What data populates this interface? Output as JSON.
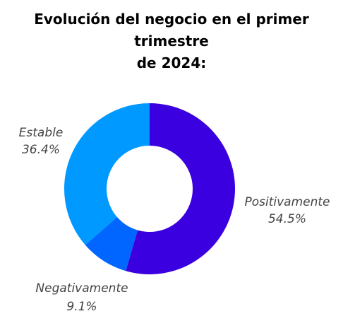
{
  "chart_data": {
    "type": "pie",
    "variant": "donut",
    "title_lines": [
      "Evolución del negocio en el primer trimestre",
      "de 2024:"
    ],
    "slices": [
      {
        "name": "Positivamente",
        "value": 54.5,
        "label": "54.5%",
        "color": "#3a00e0"
      },
      {
        "name": "Negativamente",
        "value": 9.1,
        "label": "9.1%",
        "color": "#0066ff"
      },
      {
        "name": "Estable",
        "value": 36.4,
        "label": "36.4%",
        "color": "#0099ff"
      }
    ],
    "start_angle_deg": 0,
    "direction": "clockwise"
  }
}
